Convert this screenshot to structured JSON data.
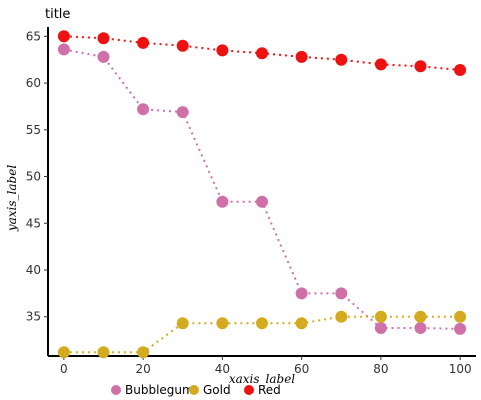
{
  "chart_data": {
    "type": "line",
    "title": "title",
    "xlabel": "xaxis_label",
    "ylabel": "yaxis_label",
    "xlim": [
      -4,
      104
    ],
    "ylim": [
      30.8,
      66
    ],
    "x_ticks": [
      0,
      20,
      40,
      60,
      80,
      100
    ],
    "y_ticks": [
      35,
      40,
      45,
      50,
      55,
      60,
      65
    ],
    "grid": false,
    "legend_position": "bottom",
    "series": [
      {
        "name": "Bubblegum",
        "color": "#d070a8",
        "x": [
          0,
          10,
          20,
          30,
          40,
          50,
          60,
          70,
          80,
          90,
          100
        ],
        "y": [
          63.6,
          62.8,
          57.2,
          56.9,
          47.3,
          47.3,
          37.5,
          37.5,
          33.8,
          33.8,
          33.7
        ]
      },
      {
        "name": "Gold",
        "color": "#d4ab1e",
        "x": [
          0,
          10,
          20,
          30,
          40,
          50,
          60,
          70,
          80,
          90,
          100
        ],
        "y": [
          31.2,
          31.2,
          31.2,
          34.3,
          34.3,
          34.3,
          34.3,
          35.0,
          35.0,
          35.0,
          35.0
        ]
      },
      {
        "name": "Red",
        "color": "#ee1111",
        "x": [
          0,
          10,
          20,
          30,
          40,
          50,
          60,
          70,
          80,
          90,
          100
        ],
        "y": [
          65.0,
          64.8,
          64.3,
          64.0,
          63.5,
          63.2,
          62.8,
          62.5,
          62.0,
          61.8,
          61.4
        ]
      }
    ]
  }
}
